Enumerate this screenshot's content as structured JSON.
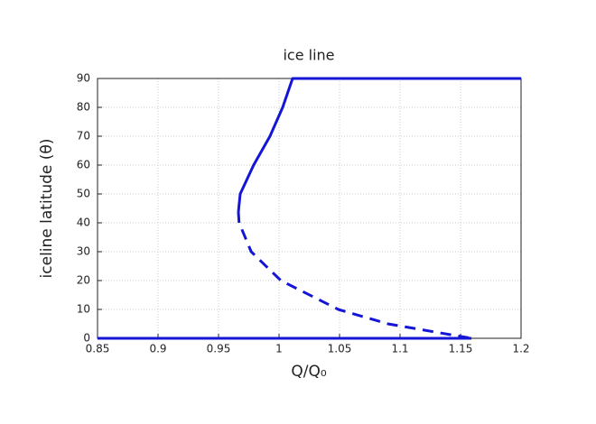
{
  "chart_data": {
    "type": "line",
    "title": "ice line",
    "xlabel": "Q/Q₀",
    "ylabel": "iceline latitude (θ)",
    "xlim": [
      0.85,
      1.2
    ],
    "xticks": [
      0.85,
      0.9,
      0.95,
      1,
      1.05,
      1.1,
      1.15,
      1.2
    ],
    "ylim": [
      0,
      90
    ],
    "yticks": [
      0,
      10,
      20,
      30,
      40,
      50,
      60,
      70,
      80,
      90
    ],
    "grid": true,
    "series": [
      {
        "color": "#1515d6",
        "style": "solid",
        "x": [
          0.9664,
          0.9679,
          0.979,
          0.9925,
          1.003,
          1.0112,
          1.2
        ],
        "values": [
          43.75,
          50,
          60,
          70,
          80,
          90,
          90
        ]
      },
      {
        "color": "#1515d6",
        "style": "dashed",
        "x": [
          0.9664,
          0.967,
          0.977,
          1.0015,
          1.049,
          1.09,
          1.159
        ],
        "values": [
          43.75,
          40,
          30,
          20,
          10,
          5,
          0
        ]
      },
      {
        "color": "#1515d6",
        "style": "solid",
        "x": [
          0.85,
          1.159
        ],
        "values": [
          0,
          0
        ]
      }
    ]
  }
}
